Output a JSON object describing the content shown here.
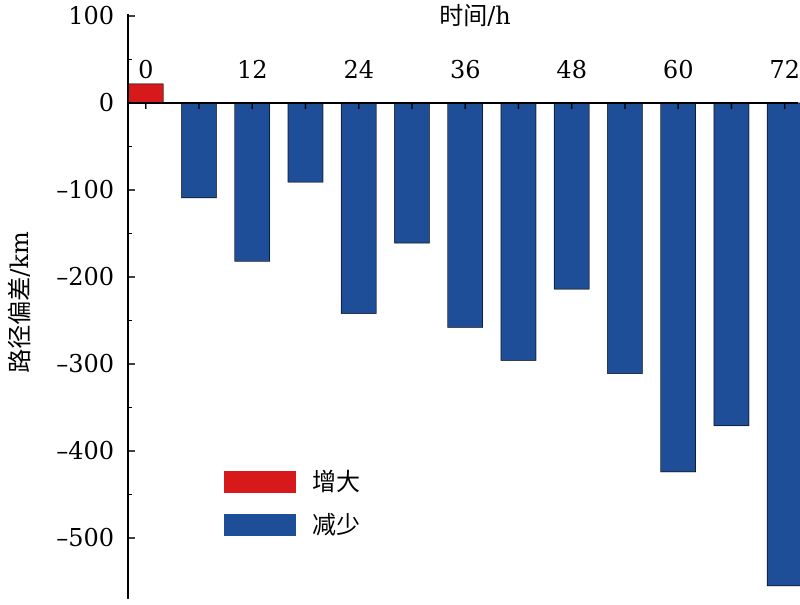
{
  "chart_data": {
    "type": "bar",
    "xlabel": "时间/h",
    "ylabel": "路径偏差/km",
    "ylim": [
      -570,
      100
    ],
    "y_ticks": [
      100,
      0,
      -100,
      -200,
      -300,
      -400,
      -500
    ],
    "x_ticks": [
      0,
      12,
      24,
      36,
      48,
      60,
      72
    ],
    "x_range": [
      -2,
      73.5
    ],
    "x": [
      0,
      6,
      12,
      18,
      24,
      30,
      36,
      42,
      48,
      54,
      60,
      66,
      72
    ],
    "values": [
      22,
      -109,
      -182,
      -91,
      -242,
      -161,
      -258,
      -296,
      -214,
      -311,
      -424,
      -371,
      -555
    ],
    "legend": [
      {
        "label": "增大",
        "color": "#d7191c"
      },
      {
        "label": "减少",
        "color": "#1f4e99"
      }
    ],
    "legend_position": "lower-left",
    "grid": false
  }
}
